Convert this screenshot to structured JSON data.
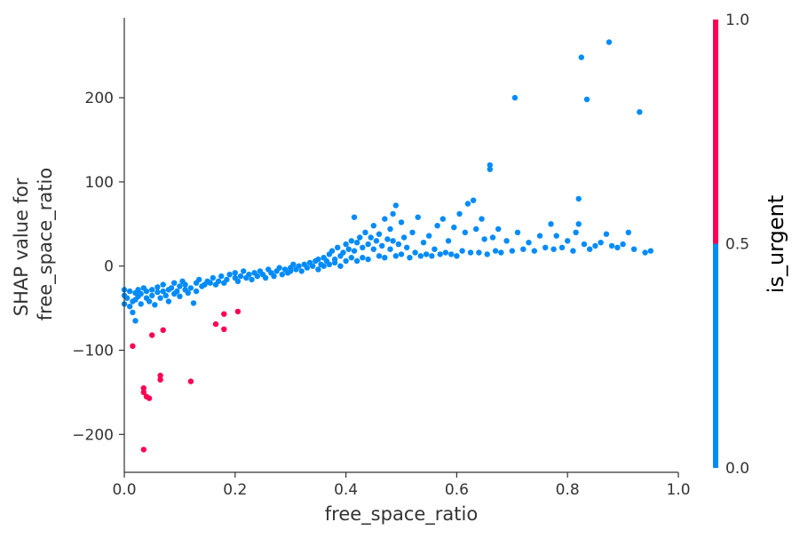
{
  "chart_data": {
    "type": "scatter",
    "title": "",
    "xlabel": "free_space_ratio",
    "ylabel_lines": [
      "SHAP value for",
      "free_space_ratio"
    ],
    "xlim": [
      0.0,
      1.0
    ],
    "ylim": [
      -245,
      295
    ],
    "xticks": [
      0.0,
      0.2,
      0.4,
      0.6,
      0.8,
      1.0
    ],
    "xtick_labels": [
      "0.0",
      "0.2",
      "0.4",
      "0.6",
      "0.8",
      "1.0"
    ],
    "yticks": [
      -200,
      -100,
      0,
      100,
      200
    ],
    "ytick_labels": [
      "−200",
      "−100",
      "0",
      "100",
      "200"
    ],
    "grid": false,
    "colorbar": {
      "label": "is_urgent",
      "ticks": [
        0.0,
        0.5,
        1.0
      ],
      "tick_labels": [
        "0.0",
        "0.5",
        "1.0"
      ],
      "low_color": "#008bfb",
      "high_color": "#ff0052"
    },
    "series": [
      {
        "color_value": 0,
        "color": "#008bfb",
        "points": [
          [
            0.0,
            -35
          ],
          [
            0.0,
            -28
          ],
          [
            0.0,
            -45
          ],
          [
            0.005,
            -38
          ],
          [
            0.01,
            -30
          ],
          [
            0.01,
            -48
          ],
          [
            0.015,
            -42
          ],
          [
            0.015,
            -55
          ],
          [
            0.02,
            -32
          ],
          [
            0.02,
            -40
          ],
          [
            0.02,
            -65
          ],
          [
            0.025,
            -28
          ],
          [
            0.025,
            -36
          ],
          [
            0.03,
            -45
          ],
          [
            0.03,
            -33
          ],
          [
            0.035,
            -26
          ],
          [
            0.04,
            -38
          ],
          [
            0.04,
            -30
          ],
          [
            0.045,
            -42
          ],
          [
            0.05,
            -35
          ],
          [
            0.05,
            -28
          ],
          [
            0.055,
            -46
          ],
          [
            0.06,
            -31
          ],
          [
            0.06,
            -25
          ],
          [
            0.065,
            -38
          ],
          [
            0.07,
            -30
          ],
          [
            0.07,
            -22
          ],
          [
            0.075,
            -35
          ],
          [
            0.08,
            -28
          ],
          [
            0.08,
            -42
          ],
          [
            0.085,
            -26
          ],
          [
            0.09,
            -33
          ],
          [
            0.09,
            -20
          ],
          [
            0.095,
            -30
          ],
          [
            0.1,
            -24
          ],
          [
            0.1,
            -36
          ],
          [
            0.105,
            -18
          ],
          [
            0.11,
            -28
          ],
          [
            0.11,
            -22
          ],
          [
            0.115,
            -32
          ],
          [
            0.12,
            -26
          ],
          [
            0.125,
            -44
          ],
          [
            0.13,
            -20
          ],
          [
            0.13,
            -30
          ],
          [
            0.135,
            -16
          ],
          [
            0.14,
            -24
          ],
          [
            0.145,
            -22
          ],
          [
            0.15,
            -18
          ],
          [
            0.155,
            -20
          ],
          [
            0.16,
            -14
          ],
          [
            0.165,
            -22
          ],
          [
            0.17,
            -18
          ],
          [
            0.175,
            -12
          ],
          [
            0.18,
            -20
          ],
          [
            0.185,
            -16
          ],
          [
            0.19,
            -10
          ],
          [
            0.2,
            -14
          ],
          [
            0.2,
            -8
          ],
          [
            0.205,
            -18
          ],
          [
            0.21,
            -12
          ],
          [
            0.215,
            -6
          ],
          [
            0.22,
            -14
          ],
          [
            0.225,
            -10
          ],
          [
            0.23,
            -16
          ],
          [
            0.235,
            -8
          ],
          [
            0.24,
            -12
          ],
          [
            0.245,
            -6
          ],
          [
            0.25,
            -10
          ],
          [
            0.255,
            -14
          ],
          [
            0.26,
            -4
          ],
          [
            0.265,
            -8
          ],
          [
            0.27,
            -12
          ],
          [
            0.275,
            -6
          ],
          [
            0.28,
            -2
          ],
          [
            0.285,
            -10
          ],
          [
            0.29,
            -4
          ],
          [
            0.295,
            -8
          ],
          [
            0.3,
            -2
          ],
          [
            0.3,
            -6
          ],
          [
            0.305,
            2
          ],
          [
            0.31,
            -4
          ],
          [
            0.315,
            0
          ],
          [
            0.32,
            -6
          ],
          [
            0.325,
            2
          ],
          [
            0.33,
            -2
          ],
          [
            0.335,
            4
          ],
          [
            0.34,
            0
          ],
          [
            0.345,
            6
          ],
          [
            0.35,
            -4
          ],
          [
            0.35,
            8
          ],
          [
            0.355,
            2
          ],
          [
            0.36,
            10
          ],
          [
            0.36,
            0
          ],
          [
            0.365,
            6
          ],
          [
            0.37,
            14
          ],
          [
            0.37,
            2
          ],
          [
            0.375,
            18
          ],
          [
            0.38,
            8
          ],
          [
            0.38,
            4
          ],
          [
            0.385,
            22
          ],
          [
            0.39,
            12
          ],
          [
            0.39,
            0
          ],
          [
            0.395,
            16
          ],
          [
            0.4,
            26
          ],
          [
            0.4,
            6
          ],
          [
            0.405,
            20
          ],
          [
            0.41,
            30
          ],
          [
            0.41,
            10
          ],
          [
            0.415,
            58
          ],
          [
            0.415,
            18
          ],
          [
            0.42,
            28
          ],
          [
            0.42,
            6
          ],
          [
            0.425,
            34
          ],
          [
            0.43,
            22
          ],
          [
            0.43,
            10
          ],
          [
            0.435,
            40
          ],
          [
            0.44,
            26
          ],
          [
            0.44,
            8
          ],
          [
            0.445,
            34
          ],
          [
            0.45,
            20
          ],
          [
            0.45,
            48
          ],
          [
            0.455,
            30
          ],
          [
            0.46,
            12
          ],
          [
            0.46,
            38
          ],
          [
            0.465,
            24
          ],
          [
            0.47,
            56
          ],
          [
            0.47,
            10
          ],
          [
            0.475,
            32
          ],
          [
            0.48,
            44
          ],
          [
            0.48,
            20
          ],
          [
            0.485,
            62
          ],
          [
            0.485,
            30
          ],
          [
            0.49,
            72
          ],
          [
            0.49,
            12
          ],
          [
            0.495,
            26
          ],
          [
            0.5,
            52
          ],
          [
            0.5,
            14
          ],
          [
            0.505,
            34
          ],
          [
            0.51,
            22
          ],
          [
            0.515,
            10
          ],
          [
            0.52,
            40
          ],
          [
            0.525,
            16
          ],
          [
            0.53,
            58
          ],
          [
            0.535,
            12
          ],
          [
            0.54,
            28
          ],
          [
            0.545,
            14
          ],
          [
            0.55,
            36
          ],
          [
            0.555,
            12
          ],
          [
            0.56,
            20
          ],
          [
            0.565,
            48
          ],
          [
            0.57,
            14
          ],
          [
            0.575,
            56
          ],
          [
            0.58,
            16
          ],
          [
            0.585,
            30
          ],
          [
            0.59,
            14
          ],
          [
            0.595,
            46
          ],
          [
            0.6,
            12
          ],
          [
            0.605,
            62
          ],
          [
            0.61,
            18
          ],
          [
            0.615,
            40
          ],
          [
            0.62,
            74
          ],
          [
            0.625,
            16
          ],
          [
            0.63,
            78
          ],
          [
            0.635,
            44
          ],
          [
            0.64,
            16
          ],
          [
            0.645,
            56
          ],
          [
            0.65,
            32
          ],
          [
            0.655,
            14
          ],
          [
            0.66,
            120
          ],
          [
            0.66,
            115
          ],
          [
            0.665,
            34
          ],
          [
            0.67,
            18
          ],
          [
            0.675,
            44
          ],
          [
            0.68,
            16
          ],
          [
            0.69,
            30
          ],
          [
            0.7,
            18
          ],
          [
            0.705,
            200
          ],
          [
            0.71,
            40
          ],
          [
            0.72,
            20
          ],
          [
            0.73,
            28
          ],
          [
            0.74,
            18
          ],
          [
            0.75,
            36
          ],
          [
            0.76,
            22
          ],
          [
            0.77,
            50
          ],
          [
            0.775,
            20
          ],
          [
            0.78,
            36
          ],
          [
            0.79,
            22
          ],
          [
            0.8,
            30
          ],
          [
            0.81,
            18
          ],
          [
            0.815,
            40
          ],
          [
            0.82,
            80
          ],
          [
            0.82,
            50
          ],
          [
            0.825,
            248
          ],
          [
            0.83,
            26
          ],
          [
            0.835,
            198
          ],
          [
            0.84,
            20
          ],
          [
            0.85,
            24
          ],
          [
            0.86,
            28
          ],
          [
            0.87,
            38
          ],
          [
            0.875,
            266
          ],
          [
            0.88,
            24
          ],
          [
            0.89,
            22
          ],
          [
            0.9,
            26
          ],
          [
            0.91,
            40
          ],
          [
            0.92,
            20
          ],
          [
            0.93,
            183
          ],
          [
            0.94,
            16
          ],
          [
            0.95,
            18
          ]
        ]
      },
      {
        "color_value": 1,
        "color": "#ff0052",
        "points": [
          [
            0.015,
            -95
          ],
          [
            0.035,
            -218
          ],
          [
            0.035,
            -145
          ],
          [
            0.035,
            -150
          ],
          [
            0.04,
            -155
          ],
          [
            0.045,
            -157
          ],
          [
            0.05,
            -82
          ],
          [
            0.065,
            -130
          ],
          [
            0.065,
            -135
          ],
          [
            0.07,
            -76
          ],
          [
            0.12,
            -137
          ],
          [
            0.165,
            -69
          ],
          [
            0.18,
            -75
          ],
          [
            0.18,
            -57
          ],
          [
            0.205,
            -54
          ]
        ]
      }
    ]
  }
}
